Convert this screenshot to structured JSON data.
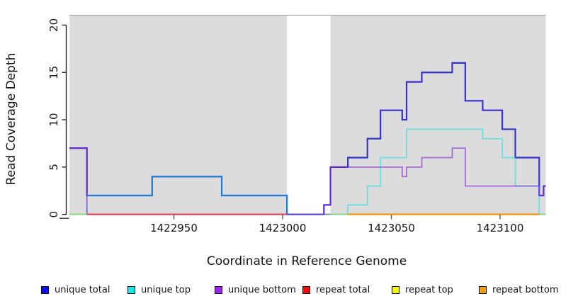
{
  "figure": {
    "xlabel": "Coordinate in Reference Genome",
    "ylabel": "Read Coverage Depth"
  },
  "chart_data": {
    "type": "line",
    "subtype": "step",
    "title": "",
    "xlabel": "Coordinate in Reference Genome",
    "ylabel": "Read Coverage Depth",
    "xlim": [
      1422902,
      1423121
    ],
    "ylim": [
      0,
      21
    ],
    "x_ticks": [
      1422950,
      1423000,
      1423050,
      1423100
    ],
    "y_ticks": [
      0,
      5,
      10,
      15,
      20
    ],
    "grid": "off",
    "legend_position": "bottom",
    "background_regions": [
      {
        "name": "left-shaded-region",
        "x0": 1422902,
        "x1": 1423002,
        "color": "#dcdcdc"
      },
      {
        "name": "right-shaded-region",
        "x0": 1423022,
        "x1": 1423121,
        "color": "#dcdcdc"
      }
    ],
    "series": [
      {
        "name": "unique total",
        "line_color": "#3432cb",
        "line_opacity": 1.0,
        "line_width": 2.2,
        "steps": [
          [
            1422902,
            7
          ],
          [
            1422910,
            2
          ],
          [
            1422940,
            4
          ],
          [
            1422972,
            2
          ],
          [
            1423002,
            0
          ],
          [
            1423019,
            1
          ],
          [
            1423022,
            5
          ],
          [
            1423030,
            6
          ],
          [
            1423039,
            8
          ],
          [
            1423045,
            11
          ],
          [
            1423055,
            10
          ],
          [
            1423057,
            14
          ],
          [
            1423064,
            15
          ],
          [
            1423078,
            16
          ],
          [
            1423084,
            12
          ],
          [
            1423092,
            11
          ],
          [
            1423101,
            9
          ],
          [
            1423107,
            6
          ],
          [
            1423118,
            2
          ],
          [
            1423120,
            3
          ]
        ]
      },
      {
        "name": "unique top",
        "line_color": "#00dde4",
        "line_opacity": 0.5,
        "line_width": 1.8,
        "steps": [
          [
            1422902,
            0
          ],
          [
            1422910,
            2
          ],
          [
            1422940,
            4
          ],
          [
            1422972,
            2
          ],
          [
            1423002,
            0
          ],
          [
            1423030,
            1
          ],
          [
            1423039,
            3
          ],
          [
            1423045,
            6
          ],
          [
            1423057,
            9
          ],
          [
            1423092,
            8
          ],
          [
            1423101,
            6
          ],
          [
            1423107,
            3
          ],
          [
            1423118,
            0
          ]
        ]
      },
      {
        "name": "unique bottom",
        "line_color": "#8b22d6",
        "line_opacity": 0.62,
        "line_width": 1.8,
        "steps": [
          [
            1422902,
            7
          ],
          [
            1422910,
            0
          ],
          [
            1423019,
            1
          ],
          [
            1423022,
            5
          ],
          [
            1423055,
            4
          ],
          [
            1423057,
            5
          ],
          [
            1423064,
            6
          ],
          [
            1423078,
            7
          ],
          [
            1423084,
            3
          ],
          [
            1423118,
            2
          ],
          [
            1423120,
            3
          ]
        ]
      },
      {
        "name": "repeat total",
        "line_color": "#e0485e",
        "line_opacity": 1.0,
        "line_width": 1.6,
        "steps": [
          [
            1422902,
            0
          ]
        ]
      },
      {
        "name": "repeat top",
        "line_color": "#f0f000",
        "line_opacity": 1.0,
        "line_width": 1.6,
        "steps": [
          [
            1422902,
            0
          ]
        ]
      },
      {
        "name": "repeat bottom",
        "line_color": "#ff9100",
        "line_opacity": 1.0,
        "line_width": 1.6,
        "steps": [
          [
            1422902,
            0
          ]
        ]
      }
    ],
    "baseline_overlays": [
      {
        "x0": 1422902,
        "x1": 1422910,
        "color": "#8fdc8f"
      },
      {
        "x0": 1422910,
        "x1": 1423002,
        "color": "#e0485e"
      },
      {
        "x0": 1423022,
        "x1": 1423030,
        "color": "#8fdc8f"
      },
      {
        "x0": 1423030,
        "x1": 1423118,
        "color": "#ff9100"
      },
      {
        "x0": 1423118,
        "x1": 1423121,
        "color": "#8fdc8f"
      }
    ],
    "legend": [
      {
        "label": "unique total",
        "color": "#0f0fef"
      },
      {
        "label": "unique top",
        "color": "#00efef"
      },
      {
        "label": "unique bottom",
        "color": "#a020f0"
      },
      {
        "label": "repeat total",
        "color": "#ef1010"
      },
      {
        "label": "repeat top",
        "color": "#f6f600"
      },
      {
        "label": "repeat bottom",
        "color": "#f7a100"
      }
    ]
  }
}
